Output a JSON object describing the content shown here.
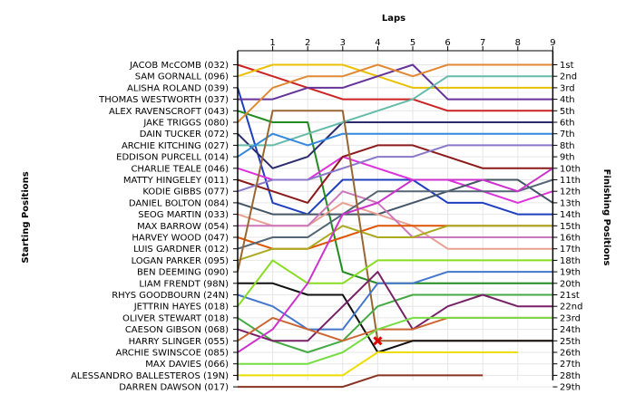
{
  "chart_data": {
    "type": "line",
    "title": "Laps",
    "ylabel_left": "Starting Positions",
    "ylabel_right": "Finishing Positions",
    "laps": [
      1,
      2,
      3,
      4,
      5,
      6,
      7,
      8,
      9
    ],
    "finish_labels": [
      "1st",
      "2nd",
      "3rd",
      "4th",
      "5th",
      "6th",
      "7th",
      "8th",
      "9th",
      "10th",
      "11th",
      "12th",
      "13th",
      "14th",
      "15th",
      "16th",
      "17th",
      "18th",
      "19th",
      "20th",
      "21st",
      "22nd",
      "23rd",
      "24th",
      "25th",
      "26th",
      "27th",
      "28th",
      "29th"
    ],
    "series": [
      {
        "name": "JACOB McCOMB (032)",
        "color": "#cc2222",
        "positions": [
          1,
          2,
          3,
          4,
          4,
          4,
          5,
          5,
          5,
          5
        ]
      },
      {
        "name": "SAM GORNALL (096)",
        "color": "#e8c000",
        "positions": [
          2,
          1,
          1,
          1,
          2,
          3,
          3,
          3,
          3,
          3
        ]
      },
      {
        "name": "ALISHA ROLAND (039)",
        "color": "#1f3fbf",
        "positions": [
          3,
          13,
          14,
          11,
          11,
          11,
          13,
          13,
          14,
          14
        ]
      },
      {
        "name": "THOMAS WESTWORTH (037)",
        "color": "#663399",
        "positions": [
          4,
          4,
          3,
          3,
          2,
          1,
          4,
          4,
          4,
          4
        ]
      },
      {
        "name": "ALEX RAVENSCROFT (043)",
        "color": "#228b22",
        "positions": [
          5,
          6,
          6,
          19,
          20,
          20,
          20,
          20,
          20,
          20
        ]
      },
      {
        "name": "JAKE TRIGGS (080)",
        "color": "#e08a33",
        "positions": [
          6,
          3,
          2,
          2,
          1,
          2,
          1,
          1,
          1,
          1
        ]
      },
      {
        "name": "DAIN TUCKER (072)",
        "color": "#2b2b6b",
        "positions": [
          7,
          10,
          9,
          6,
          6,
          6,
          6,
          6,
          6,
          6
        ]
      },
      {
        "name": "ARCHIE KITCHING (027)",
        "color": "#66bbaa",
        "positions": [
          8,
          8,
          7,
          6,
          5,
          4,
          2,
          2,
          2,
          2
        ]
      },
      {
        "name": "EDDISON PURCELL (014)",
        "color": "#3388dd",
        "positions": [
          9,
          7,
          8,
          7,
          7,
          7,
          7,
          7,
          7,
          7
        ]
      },
      {
        "name": "CHARLIE TEALE (046)",
        "color": "#dd33dd",
        "positions": [
          10,
          11,
          11,
          9,
          10,
          11,
          11,
          12,
          13,
          12
        ]
      },
      {
        "name": "MATTY HINGELEY (011)",
        "color": "#8b1a1a",
        "positions": [
          11,
          12,
          13,
          9,
          8,
          8,
          9,
          10,
          10,
          10
        ]
      },
      {
        "name": "KODIE GIBBS (077)",
        "color": "#8a78c8",
        "positions": [
          12,
          11,
          11,
          10,
          9,
          9,
          8,
          8,
          8,
          8
        ]
      },
      {
        "name": "DANIEL BOLTON (084)",
        "color": "#445566",
        "positions": [
          13,
          14,
          14,
          14,
          14,
          13,
          12,
          11,
          11,
          13
        ]
      },
      {
        "name": "SEOG MARTIN (033)",
        "color": "#e8a090",
        "positions": [
          14,
          15,
          15,
          13,
          14,
          15,
          17,
          17,
          17,
          17
        ]
      },
      {
        "name": "MAX BARROW (054)",
        "color": "#cc77bb",
        "positions": [
          15,
          15,
          15,
          12,
          13,
          16,
          16,
          16,
          16,
          16
        ]
      },
      {
        "name": "HARVEY WOOD (047)",
        "color": "#dd5500",
        "positions": [
          16,
          17,
          17,
          16,
          15,
          15,
          15,
          15,
          15,
          15
        ]
      },
      {
        "name": "LUIS GARDNER (012)",
        "color": "#556677",
        "positions": [
          17,
          16,
          16,
          14,
          12,
          12,
          12,
          12,
          12,
          11
        ]
      },
      {
        "name": "LOGAN PARKER (095)",
        "color": "#aaaa22",
        "positions": [
          18,
          17,
          17,
          15,
          16,
          16,
          15,
          15,
          15,
          15
        ]
      },
      {
        "name": "BEN DEEMING (090)",
        "color": "#996633",
        "positions": [
          19,
          5,
          5,
          5,
          25,
          25,
          25,
          25,
          25,
          25
        ]
      },
      {
        "name": "LIAM FRENDT (98N)",
        "color": "#111111",
        "positions": [
          20,
          20,
          21,
          21,
          26,
          25,
          25,
          25,
          25,
          25
        ]
      },
      {
        "name": "RHYS GOODBOURN (24N)",
        "color": "#4477cc",
        "positions": [
          21,
          22,
          24,
          24,
          20,
          20,
          19,
          19,
          19,
          19
        ]
      },
      {
        "name": "JETTRIN HAYES (018)",
        "color": "#88dd22",
        "positions": [
          22,
          18,
          20,
          20,
          18,
          18,
          18,
          18,
          18,
          18
        ]
      },
      {
        "name": "OLIVER STEWART (018)",
        "color": "#44aa44",
        "positions": [
          23,
          25,
          26,
          25,
          22,
          21,
          21,
          21,
          21,
          21
        ]
      },
      {
        "name": "CAESON GIBSON (068)",
        "color": "#772266",
        "positions": [
          24,
          25,
          25,
          22,
          19,
          24,
          22,
          21,
          22,
          22
        ]
      },
      {
        "name": "HARRY SLINGER (055)",
        "color": "#cc6633",
        "positions": [
          25,
          23,
          24,
          25,
          24,
          24,
          23,
          23,
          23,
          23
        ]
      },
      {
        "name": "ARCHIE SWINSCOE (085)",
        "color": "#cc33cc",
        "positions": [
          26,
          24,
          20,
          14,
          13,
          11,
          11,
          11,
          12,
          10
        ]
      },
      {
        "name": "MAX DAVIES (066)",
        "color": "#77dd44",
        "positions": [
          27,
          27,
          27,
          26,
          24,
          23,
          23,
          23,
          23,
          23
        ]
      },
      {
        "name": "ALESSANDRO BALLESTEROS (19N)",
        "color": "#eedd00",
        "positions": [
          28,
          28,
          28,
          28,
          26,
          26,
          26,
          26,
          26
        ]
      },
      {
        "name": "DARREN DAWSON (017)",
        "color": "#883322",
        "positions": [
          29,
          29,
          29,
          29,
          28,
          28,
          28,
          28
        ]
      }
    ]
  }
}
